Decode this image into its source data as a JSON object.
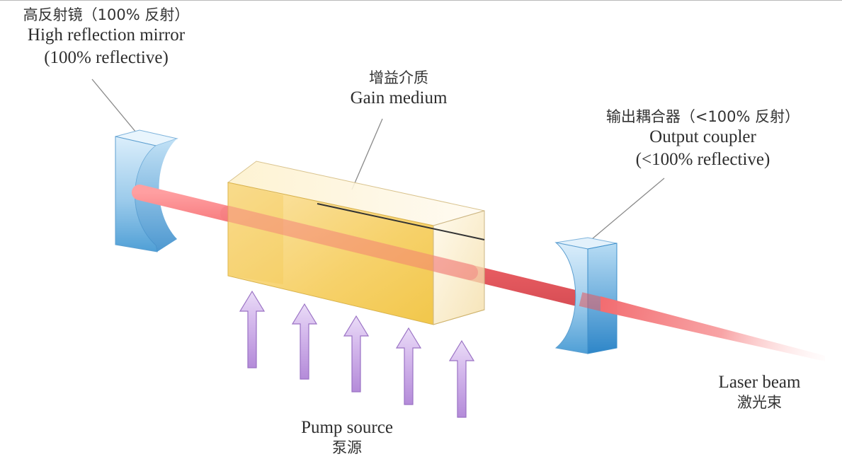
{
  "labels": {
    "mirror": {
      "zh": "高反射镜（100% 反射）",
      "en1": "High reflection mirror",
      "en2": "(100% reflective)"
    },
    "gain": {
      "zh": "增益介质",
      "en": "Gain medium"
    },
    "coupler": {
      "zh": "输出耦合器（<100% 反射）",
      "en1": "Output coupler",
      "en2": "(<100% reflective)"
    },
    "laser": {
      "en": "Laser beam",
      "zh": "激光束"
    },
    "pump": {
      "en": "Pump source",
      "zh": "泵源"
    }
  },
  "pump_arrows": 5,
  "colors": {
    "beam": "#f2666a",
    "gain_medium": "#f5d36a",
    "mirror": "#5aa7dc",
    "pump_arrow": "#c9a6e4",
    "leader_line": "#8a8a8a"
  }
}
